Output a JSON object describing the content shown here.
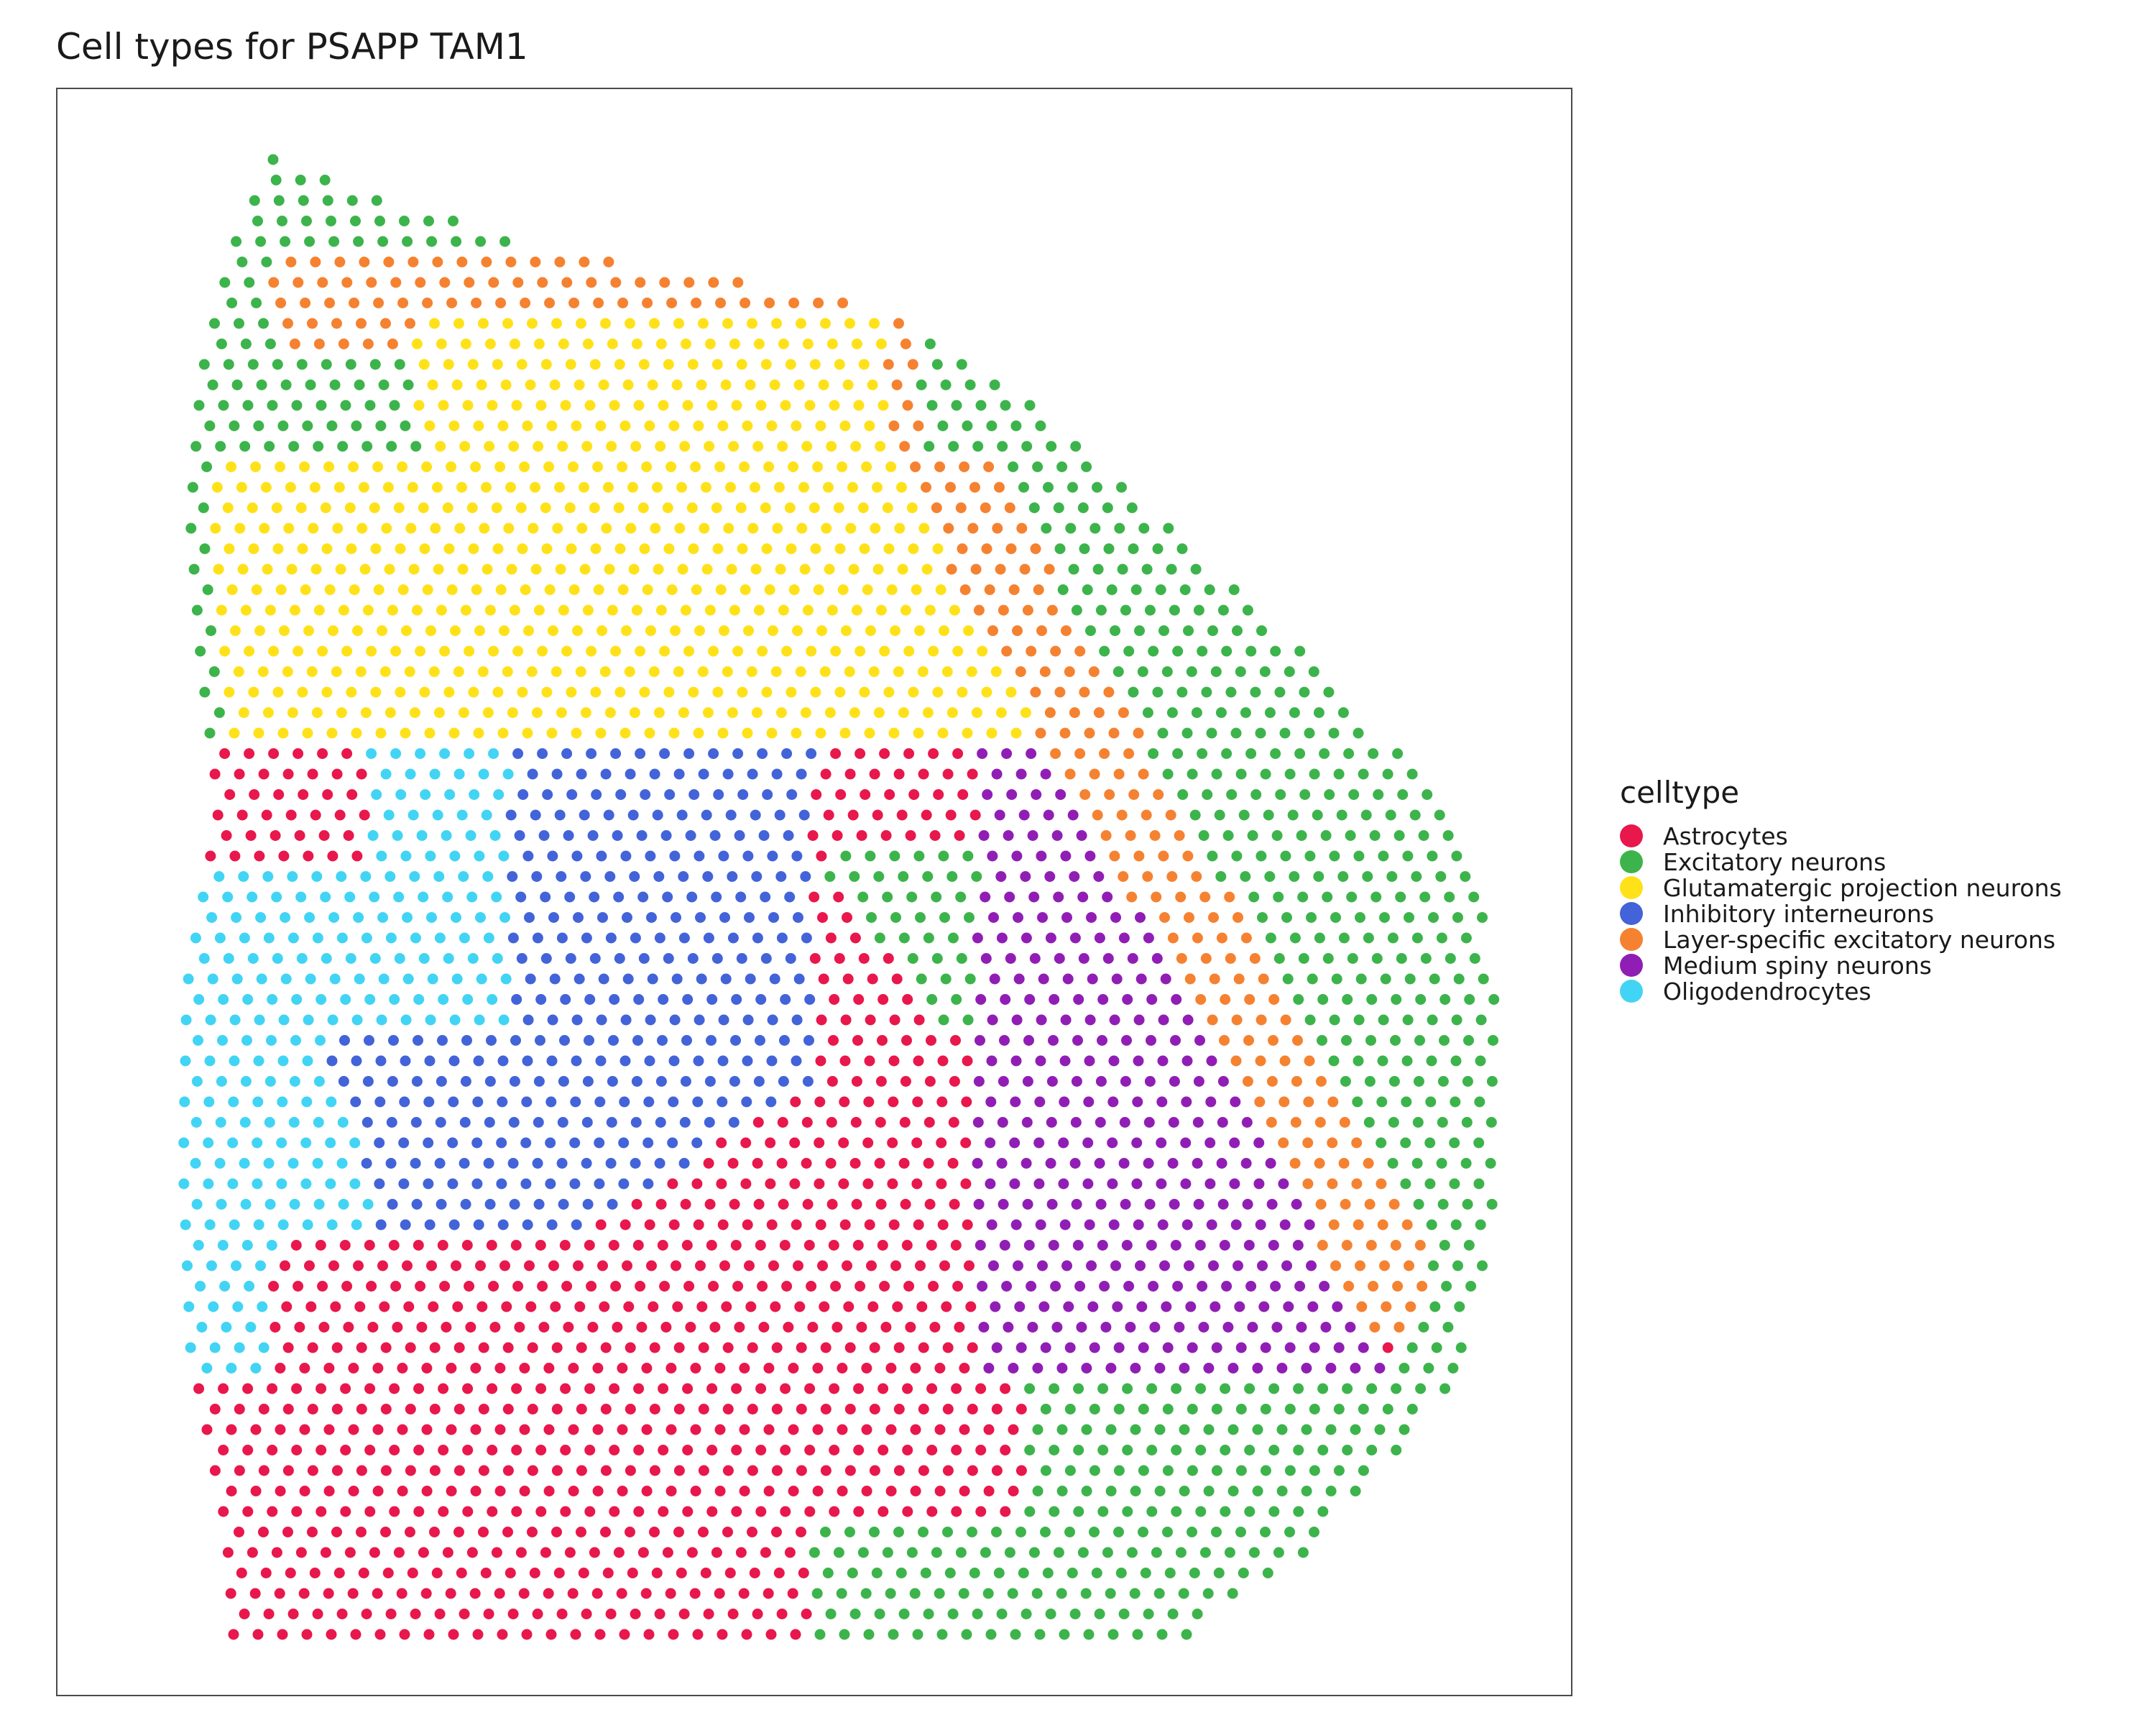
{
  "title": "Cell types for PSAPP TAM1",
  "legend": {
    "title": "celltype",
    "items": [
      {
        "label": "Astrocytes",
        "color": "#e8174c"
      },
      {
        "label": "Excitatory neurons",
        "color": "#3cb44b"
      },
      {
        "label": "Glutamatergic projection neurons",
        "color": "#ffe119"
      },
      {
        "label": "Inhibitory interneurons",
        "color": "#4363d8"
      },
      {
        "label": "Layer-specific excitatory neurons",
        "color": "#f58231"
      },
      {
        "label": "Medium spiny neurons",
        "color": "#911eb4"
      },
      {
        "label": "Oligodendrocytes",
        "color": "#42d4f4"
      }
    ]
  },
  "chart_data": {
    "type": "scatter",
    "title": "Cell types for PSAPP TAM1",
    "xlabel": "",
    "ylabel": "",
    "grid": false,
    "axes_visible": false,
    "legend_position": "right",
    "description_of_layout": "hexagonal spot grid of a tissue section; each spot colored by cell type",
    "series": [
      {
        "name": "Astrocytes",
        "color": "#e8174c",
        "regions": [
          [
            [
              0.38,
              2.9
            ],
            [
              0.75,
              2.9
            ],
            [
              0.75,
              3.4
            ],
            [
              0.38,
              3.4
            ]
          ],
          [
            [
              0.03,
              3.4
            ],
            [
              0.62,
              3.4
            ],
            [
              0.62,
              3.6
            ],
            [
              0.03,
              3.6
            ]
          ],
          [
            [
              0.0,
              4.85
            ],
            [
              1.55,
              4.85
            ],
            [
              1.55,
              5.35
            ],
            [
              0.0,
              5.35
            ]
          ]
        ]
      },
      {
        "name": "Excitatory neurons",
        "color": "#3cb44b"
      },
      {
        "name": "Glutamatergic projection neurons",
        "color": "#ffe119"
      },
      {
        "name": "Inhibitory interneurons",
        "color": "#4363d8"
      },
      {
        "name": "Layer-specific excitatory neurons",
        "color": "#f58231"
      },
      {
        "name": "Medium spiny neurons",
        "color": "#911eb4"
      },
      {
        "name": "Oligodendrocytes",
        "color": "#42d4f4"
      }
    ]
  }
}
